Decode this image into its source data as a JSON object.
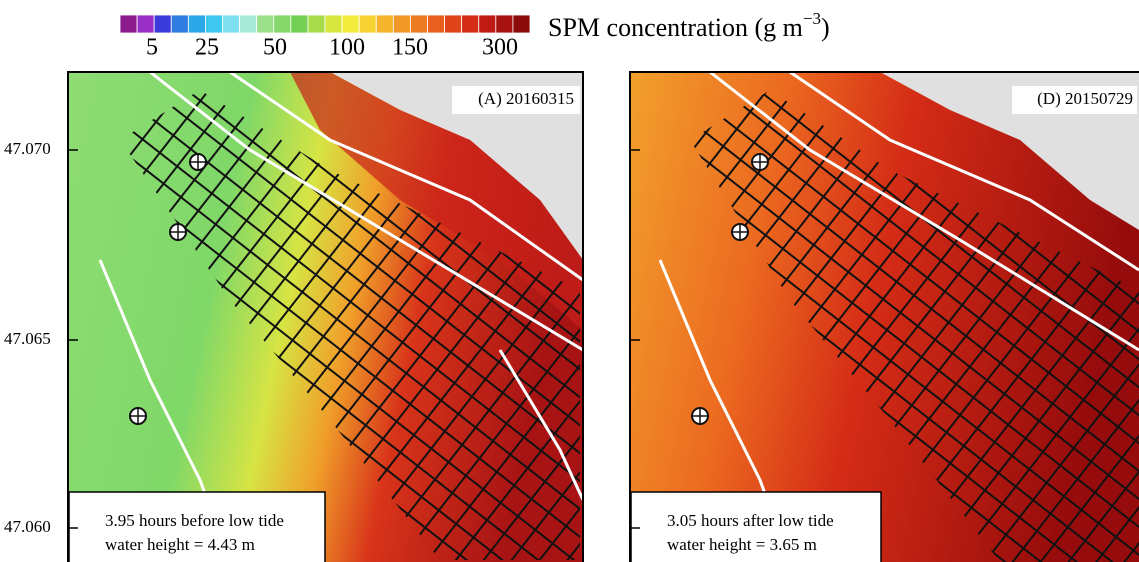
{
  "colorbar": {
    "colors": [
      "#8b1a8b",
      "#9b30c8",
      "#3b3bd9",
      "#2f7de0",
      "#2aa8e8",
      "#3fc8ef",
      "#7fe0f0",
      "#a8ecd8",
      "#9be08a",
      "#86d86a",
      "#74d055",
      "#a8dc4a",
      "#d8e640",
      "#f4ec3c",
      "#f6d232",
      "#f4b42c",
      "#f09828",
      "#ec7c22",
      "#e8601e",
      "#e0441a",
      "#d42c16",
      "#c01a14",
      "#a81210",
      "#8c0c0c"
    ],
    "ticks": [
      "5",
      "25",
      "50",
      "100",
      "150",
      "300"
    ],
    "label": "SPM concentration (g m",
    "label_sup": "−3",
    "label_end": ")"
  },
  "y_axis": {
    "ticks": [
      "47.070",
      "47.065",
      "47.060"
    ]
  },
  "panels": [
    {
      "label": "(A) 20160315",
      "note_1": "3.95 hours before low tide",
      "note_2": "water height = 4.43 m"
    },
    {
      "label": "(D) 20150729",
      "note_1": "3.05 hours after low tide",
      "note_2": "water height = 3.65 m"
    }
  ]
}
